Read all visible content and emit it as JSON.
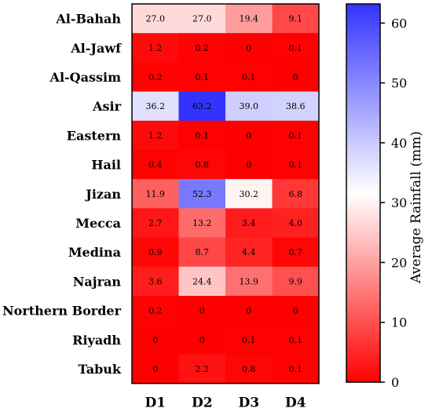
{
  "chart_data": {
    "type": "heatmap",
    "rows": [
      "Al-Bahah",
      "Al-Jawf",
      "Al-Qassim",
      "Asir",
      "Eastern",
      "Hail",
      "Jizan",
      "Mecca",
      "Medina",
      "Najran",
      "Northern Border",
      "Riyadh",
      "Tabuk"
    ],
    "columns": [
      "D1",
      "D2",
      "D3",
      "D4"
    ],
    "values": [
      [
        27.0,
        27.0,
        19.4,
        9.1
      ],
      [
        1.2,
        0.2,
        0,
        0.1
      ],
      [
        0.2,
        0.1,
        0.1,
        0
      ],
      [
        36.2,
        63.2,
        39.0,
        38.6
      ],
      [
        1.2,
        0.1,
        0,
        0.1
      ],
      [
        0.4,
        0.8,
        0,
        0.1
      ],
      [
        11.9,
        52.3,
        30.2,
        6.8
      ],
      [
        2.7,
        13.2,
        3.4,
        4.0
      ],
      [
        0.9,
        8.7,
        4.4,
        0.7
      ],
      [
        3.6,
        24.4,
        13.9,
        9.9
      ],
      [
        0.2,
        0,
        0,
        0
      ],
      [
        0,
        0,
        0.1,
        0.1
      ],
      [
        0,
        2.2,
        0.8,
        0.1
      ]
    ],
    "labels": [
      [
        "27.0",
        "27.0",
        "19.4",
        "9.1"
      ],
      [
        "1.2",
        "0.2",
        "0",
        "0.1"
      ],
      [
        "0.2",
        "0.1",
        "0.1",
        "0"
      ],
      [
        "36.2",
        "63.2",
        "39.0",
        "38.6"
      ],
      [
        "1.2",
        "0.1",
        "0",
        "0.1"
      ],
      [
        "0.4",
        "0.8",
        "0",
        "0.1"
      ],
      [
        "11.9",
        "52.3",
        "30.2",
        "6.8"
      ],
      [
        "2.7",
        "13.2",
        "3.4",
        "4.0"
      ],
      [
        "0.9",
        "8.7",
        "4.4",
        "0.7"
      ],
      [
        "3.6",
        "24.4",
        "13.9",
        "9.9"
      ],
      [
        "0.2",
        "0",
        "0",
        "0"
      ],
      [
        "0",
        "0",
        "0.1",
        "0.1"
      ],
      [
        "0",
        "2.2",
        "0.8",
        "0.1"
      ]
    ],
    "colorbar": {
      "label": "Average Rainfall (mm)",
      "min": 0,
      "max": 63.2,
      "ticks": [
        0,
        10,
        20,
        30,
        40,
        50,
        60
      ],
      "tick_labels": [
        "0",
        "10",
        "20",
        "30",
        "40",
        "50",
        "60"
      ],
      "colors": {
        "low": "#ff0000",
        "mid": "#ffffff",
        "high": "#3333ff"
      },
      "mid_value": 31.6
    }
  }
}
